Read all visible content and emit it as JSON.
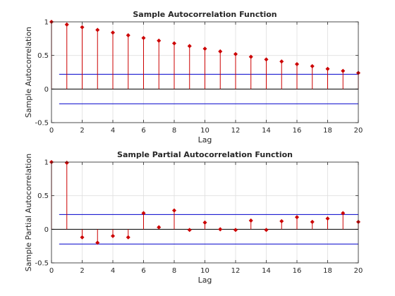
{
  "chart_data": [
    {
      "type": "stem",
      "title": "Sample Autocorrelation Function",
      "xlabel": "Lag",
      "ylabel": "Sample Autocorrelation",
      "xlim": [
        0,
        20
      ],
      "ylim": [
        -0.5,
        1
      ],
      "xticks": [
        "0",
        "2",
        "4",
        "6",
        "8",
        "10",
        "12",
        "14",
        "16",
        "18",
        "20"
      ],
      "yticks": [
        "-0.5",
        "0",
        "0.5",
        "1"
      ],
      "grid": true,
      "x": [
        0,
        1,
        2,
        3,
        4,
        5,
        6,
        7,
        8,
        9,
        10,
        11,
        12,
        13,
        14,
        15,
        16,
        17,
        18,
        19,
        20
      ],
      "values": [
        1.0,
        0.96,
        0.92,
        0.88,
        0.84,
        0.8,
        0.76,
        0.72,
        0.68,
        0.64,
        0.6,
        0.56,
        0.52,
        0.48,
        0.44,
        0.41,
        0.37,
        0.34,
        0.3,
        0.27,
        0.24
      ],
      "confidence_bounds": [
        0.22,
        -0.22
      ],
      "stem_color": "#cc0000",
      "bound_color": "#0000cc"
    },
    {
      "type": "stem",
      "title": "Sample Partial Autocorrelation Function",
      "xlabel": "Lag",
      "ylabel": "Sample Partial Autocorrelation",
      "xlim": [
        0,
        20
      ],
      "ylim": [
        -0.5,
        1
      ],
      "xticks": [
        "0",
        "2",
        "4",
        "6",
        "8",
        "10",
        "12",
        "14",
        "16",
        "18",
        "20"
      ],
      "yticks": [
        "-0.5",
        "0",
        "0.5",
        "1"
      ],
      "grid": true,
      "x": [
        0,
        1,
        2,
        3,
        4,
        5,
        6,
        7,
        8,
        9,
        10,
        11,
        12,
        13,
        14,
        15,
        16,
        17,
        18,
        19,
        20
      ],
      "values": [
        1.0,
        0.99,
        -0.12,
        -0.2,
        -0.1,
        -0.12,
        0.24,
        0.03,
        0.28,
        -0.01,
        0.1,
        0.0,
        -0.01,
        0.13,
        -0.01,
        0.12,
        0.18,
        0.11,
        0.16,
        0.24,
        0.11
      ],
      "confidence_bounds": [
        0.22,
        -0.22
      ],
      "stem_color": "#cc0000",
      "bound_color": "#0000cc"
    }
  ]
}
